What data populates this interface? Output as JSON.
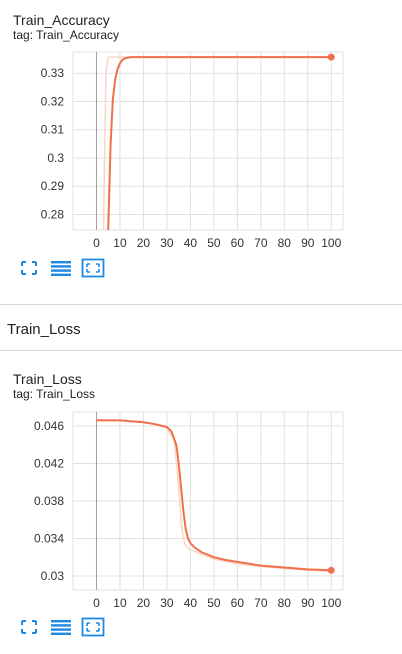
{
  "section": {
    "title": "Train_Loss"
  },
  "charts": [
    {
      "title": "Train_Accuracy",
      "tag": "tag: Train_Accuracy"
    },
    {
      "title": "Train_Loss",
      "tag": "tag: Train_Loss"
    }
  ],
  "colors": {
    "line": "#f0704a",
    "smoothed_faint": "#fad5c8",
    "grid": "#e0e0e0",
    "axis": "#9e9e9e",
    "icon": "#1e88e5"
  },
  "icons": [
    "fullscreen-icon",
    "data-table-icon",
    "fit-domain-icon"
  ],
  "chart_data": [
    {
      "type": "line",
      "title": "Train_Accuracy",
      "xlabel": "",
      "ylabel": "",
      "xlim": [
        -10,
        105
      ],
      "ylim": [
        0.2745,
        0.3375
      ],
      "x_ticks": [
        0,
        10,
        20,
        30,
        40,
        50,
        60,
        70,
        80,
        90,
        100
      ],
      "y_ticks": [
        0.28,
        0.29,
        0.3,
        0.31,
        0.32,
        0.33
      ],
      "y_tick_labels": [
        "0.28",
        "0.29",
        "0.3",
        "0.31",
        "0.32",
        "0.33"
      ],
      "grid": true,
      "series": [
        {
          "x": [
            5,
            6,
            7,
            8,
            9,
            10,
            11,
            12,
            13,
            14,
            15,
            17,
            20,
            30,
            40,
            60,
            80,
            100
          ],
          "y": [
            0.2745,
            0.305,
            0.321,
            0.328,
            0.3315,
            0.3335,
            0.3347,
            0.3352,
            0.3355,
            0.3356,
            0.3357,
            0.3357,
            0.3357,
            0.3357,
            0.3357,
            0.3357,
            0.3357,
            0.3357
          ]
        }
      ],
      "raw_series": [
        {
          "x": [
            3,
            4,
            5,
            6,
            10,
            20,
            40,
            60,
            80,
            100
          ],
          "y": [
            0.2745,
            0.33,
            0.3357,
            0.3357,
            0.3357,
            0.3357,
            0.3357,
            0.3357,
            0.3357,
            0.3357
          ]
        }
      ]
    },
    {
      "type": "line",
      "title": "Train_Loss",
      "xlabel": "",
      "ylabel": "",
      "xlim": [
        -10,
        105
      ],
      "ylim": [
        0.0285,
        0.0475
      ],
      "x_ticks": [
        0,
        10,
        20,
        30,
        40,
        50,
        60,
        70,
        80,
        90,
        100
      ],
      "y_ticks": [
        0.03,
        0.034,
        0.038,
        0.042,
        0.046
      ],
      "y_tick_labels": [
        "0.03",
        "0.034",
        "0.038",
        "0.042",
        "0.046"
      ],
      "grid": true,
      "series": [
        {
          "x": [
            0,
            10,
            20,
            25,
            30,
            32,
            34,
            35,
            36,
            37,
            38,
            39,
            40,
            42,
            45,
            50,
            55,
            60,
            70,
            80,
            90,
            100
          ],
          "y": [
            0.0466,
            0.0466,
            0.0464,
            0.0462,
            0.0459,
            0.0454,
            0.044,
            0.042,
            0.0395,
            0.037,
            0.035,
            0.034,
            0.0335,
            0.033,
            0.0325,
            0.032,
            0.0317,
            0.0315,
            0.0311,
            0.0309,
            0.0307,
            0.0306
          ]
        }
      ],
      "raw_series": [
        {
          "x": [
            0,
            20,
            30,
            33,
            35,
            36,
            37,
            38,
            40,
            45,
            50,
            60,
            70,
            80,
            90,
            100
          ],
          "y": [
            0.0467,
            0.0465,
            0.0458,
            0.0445,
            0.0395,
            0.036,
            0.034,
            0.0332,
            0.0328,
            0.0323,
            0.0318,
            0.0313,
            0.031,
            0.0308,
            0.0306,
            0.0305
          ]
        }
      ]
    }
  ]
}
